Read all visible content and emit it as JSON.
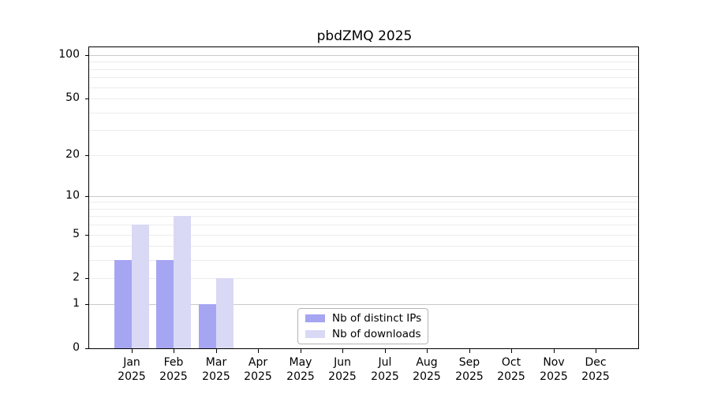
{
  "chart_data": {
    "type": "bar",
    "title": "pbdZMQ 2025",
    "categories": [
      "Jan",
      "Feb",
      "Mar",
      "Apr",
      "May",
      "Jun",
      "Jul",
      "Aug",
      "Sep",
      "Oct",
      "Nov",
      "Dec"
    ],
    "year": "2025",
    "series": [
      {
        "name": "Nb of distinct IPs",
        "color": "#a5a5f2",
        "values": [
          3,
          3,
          1,
          null,
          null,
          null,
          null,
          null,
          null,
          null,
          null,
          null
        ]
      },
      {
        "name": "Nb of downloads",
        "color": "#d9d9f5",
        "values": [
          6,
          7,
          2,
          null,
          null,
          null,
          null,
          null,
          null,
          null,
          null,
          null
        ]
      }
    ],
    "y_axis": {
      "scale": "log1p",
      "max": 100,
      "tick_labels": [
        "100",
        "50",
        "20",
        "10",
        "5",
        "2",
        "1",
        "0"
      ],
      "tick_values": [
        100,
        50,
        20,
        10,
        5,
        2,
        1,
        0
      ]
    },
    "gridlines": {
      "major": [
        1,
        10,
        100
      ],
      "minor": [
        2,
        3,
        4,
        5,
        6,
        7,
        8,
        9,
        20,
        30,
        40,
        50,
        60,
        70,
        80,
        90
      ]
    },
    "legend": {
      "position": "lower center"
    },
    "colors": {
      "spine": "#000000",
      "grid_major": "#c9c9c9",
      "grid_minor": "#ececec"
    }
  }
}
